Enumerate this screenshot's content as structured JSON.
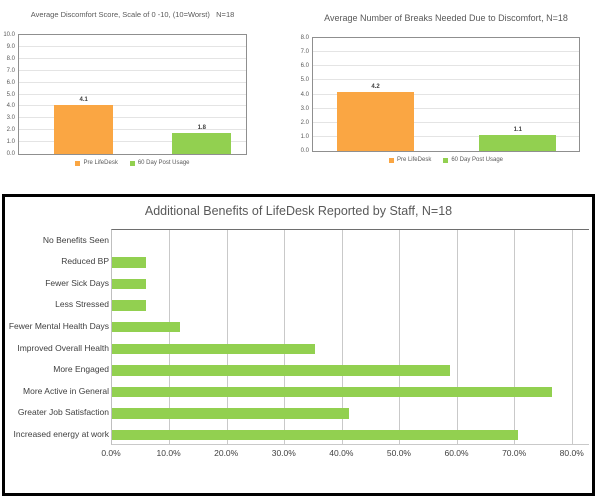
{
  "colors": {
    "pre_lifedesk_orange": "#FAA643",
    "post_usage_green": "#92D050",
    "title_gray": "#595959",
    "panel_border_black": "#000000"
  },
  "chart_data": [
    {
      "type": "bar",
      "orientation": "vertical",
      "title": "Average Discomfort Score, Scale of 0 -10, (10=Worst)   N=18",
      "categories": [
        "Pre LifeDesk",
        "60 Day Post Usage"
      ],
      "values": [
        4.1,
        1.8
      ],
      "data_labels": [
        "4.1",
        "1.8"
      ],
      "bar_colors": [
        "#FAA643",
        "#92D050"
      ],
      "ylim": [
        0,
        10
      ],
      "ytick_labels": [
        "0.0",
        "1.0",
        "2.0",
        "3.0",
        "4.0",
        "5.0",
        "6.0",
        "7.0",
        "8.0",
        "9.0",
        "10.0"
      ],
      "xlabel": "",
      "ylabel": "",
      "grid": true,
      "legend_position": "bottom",
      "legend": [
        {
          "label": "Pre LifeDesk",
          "color": "#FAA643"
        },
        {
          "label": "60 Day Post Usage",
          "color": "#92D050"
        }
      ]
    },
    {
      "type": "bar",
      "orientation": "vertical",
      "title": "Average Number of Breaks Needed Due to Discomfort, N=18",
      "categories": [
        "Pre LifeDesk",
        "60 Day Post Usage"
      ],
      "values": [
        4.2,
        1.1
      ],
      "data_labels": [
        "4.2",
        "1.1"
      ],
      "bar_colors": [
        "#FAA643",
        "#92D050"
      ],
      "ylim": [
        0,
        8
      ],
      "ytick_labels": [
        "0.0",
        "1.0",
        "2.0",
        "3.0",
        "4.0",
        "5.0",
        "6.0",
        "7.0",
        "8.0"
      ],
      "xlabel": "",
      "ylabel": "",
      "grid": true,
      "legend_position": "bottom",
      "legend": [
        {
          "label": "Pre LifeDesk",
          "color": "#FAA643"
        },
        {
          "label": "60 Day Post Usage",
          "color": "#92D050"
        }
      ]
    },
    {
      "type": "bar",
      "orientation": "horizontal",
      "title": "Additional Benefits of LifeDesk Reported by Staff, N=18",
      "categories": [
        "No Benefits Seen",
        "Reduced BP",
        "Fewer Sick Days",
        "Less Stressed",
        "Fewer Mental Health Days",
        "Improved Overall Health",
        "More Engaged",
        "More Active in General",
        "Greater Job Satisfaction",
        "Increased energy at work"
      ],
      "values": [
        0.0,
        5.9,
        5.9,
        5.9,
        11.8,
        35.3,
        58.8,
        76.5,
        41.2,
        70.6
      ],
      "bar_color": "#92D050",
      "xlim": [
        0,
        80
      ],
      "xticks": [
        0,
        10,
        20,
        30,
        40,
        50,
        60,
        70,
        80
      ],
      "xtick_labels": [
        "0.0%",
        "10.0%",
        "20.0%",
        "30.0%",
        "40.0%",
        "50.0%",
        "60.0%",
        "70.0%",
        "80.0%"
      ],
      "xlabel": "",
      "ylabel": "",
      "grid": true,
      "legend_position": "none"
    }
  ]
}
